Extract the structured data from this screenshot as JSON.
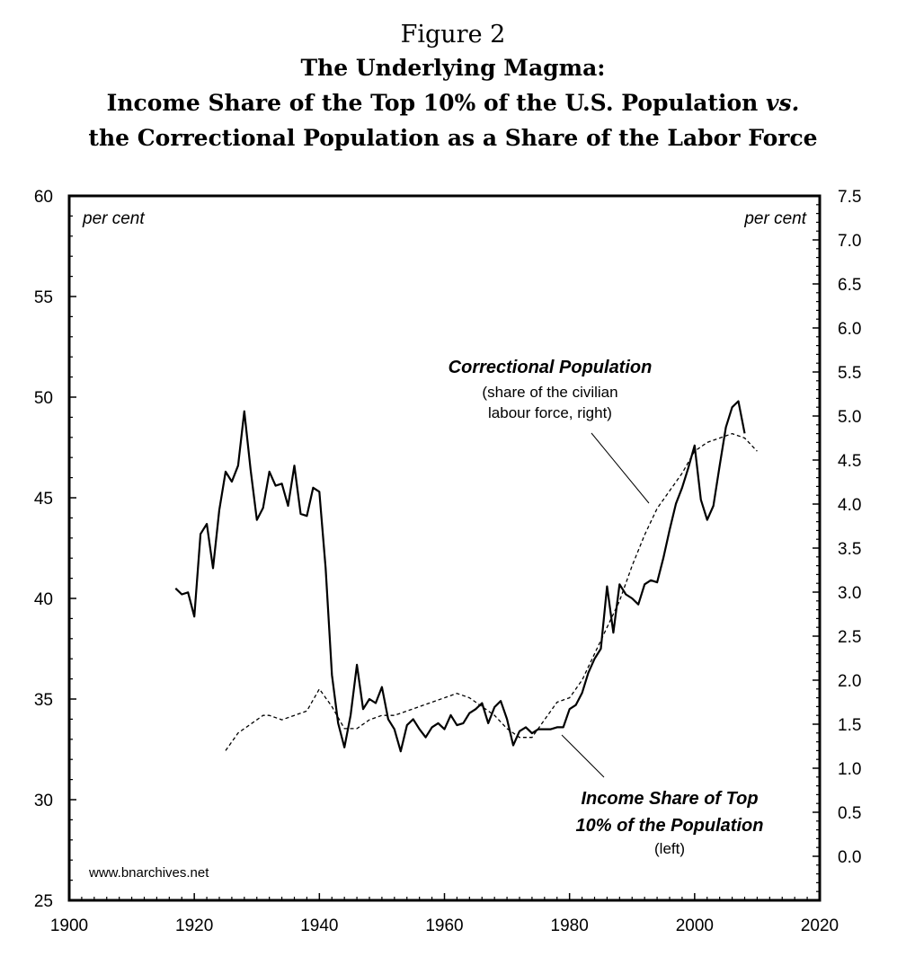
{
  "figure": {
    "label": "Figure 2",
    "title_line1": "The Underlying Magma:",
    "title_line2_a": "Income Share of the Top 10% of the U.S. Population ",
    "title_line2_b": "vs.",
    "title_line3": "the Correctional Population as a Share of the Labor Force"
  },
  "chart_data": {
    "type": "line",
    "x_axis": {
      "range": [
        1900,
        2020
      ],
      "ticks": [
        1900,
        1920,
        1940,
        1960,
        1980,
        2000,
        2020
      ]
    },
    "y_left": {
      "range": [
        25,
        60
      ],
      "ticks": [
        25,
        30,
        35,
        40,
        45,
        50,
        55,
        60
      ],
      "unit_label": "per cent"
    },
    "y_right": {
      "range": [
        -0.5,
        7.5
      ],
      "ticks": [
        "0.0",
        "0.5",
        "1.0",
        "1.5",
        "2.0",
        "2.5",
        "3.0",
        "3.5",
        "4.0",
        "4.5",
        "5.0",
        "5.5",
        "6.0",
        "6.5",
        "7.0",
        "7.5"
      ],
      "unit_label": "per cent"
    },
    "series": [
      {
        "name": "Income Share of Top 10% of the Population",
        "axis": "left",
        "style": "solid",
        "color": "#000000",
        "x": [
          1917,
          1918,
          1919,
          1920,
          1921,
          1922,
          1923,
          1924,
          1925,
          1926,
          1927,
          1928,
          1929,
          1930,
          1931,
          1932,
          1933,
          1934,
          1935,
          1936,
          1937,
          1938,
          1939,
          1940,
          1941,
          1942,
          1943,
          1944,
          1945,
          1946,
          1947,
          1948,
          1949,
          1950,
          1951,
          1952,
          1953,
          1954,
          1955,
          1956,
          1957,
          1958,
          1959,
          1960,
          1961,
          1962,
          1963,
          1964,
          1965,
          1966,
          1967,
          1968,
          1969,
          1970,
          1971,
          1972,
          1973,
          1974,
          1975,
          1976,
          1977,
          1978,
          1979,
          1980,
          1981,
          1982,
          1983,
          1984,
          1985,
          1986,
          1987,
          1988,
          1989,
          1990,
          1991,
          1992,
          1993,
          1994,
          1995,
          1996,
          1997,
          1998,
          1999,
          2000,
          2001,
          2002,
          2003,
          2004,
          2005,
          2006,
          2007,
          2008
        ],
        "y": [
          40.5,
          40.2,
          40.3,
          39.1,
          43.2,
          43.7,
          41.5,
          44.4,
          46.3,
          45.8,
          46.6,
          49.3,
          46.4,
          43.9,
          44.5,
          46.3,
          45.6,
          45.7,
          44.6,
          46.6,
          44.2,
          44.1,
          45.5,
          45.3,
          41.5,
          36.2,
          33.8,
          32.6,
          34.2,
          36.7,
          34.5,
          35.0,
          34.8,
          35.6,
          34.0,
          33.5,
          32.4,
          33.7,
          34.0,
          33.5,
          33.1,
          33.6,
          33.8,
          33.5,
          34.2,
          33.7,
          33.8,
          34.3,
          34.5,
          34.8,
          33.8,
          34.6,
          34.9,
          34.0,
          32.7,
          33.4,
          33.6,
          33.3,
          33.5,
          33.5,
          33.5,
          33.6,
          33.6,
          34.5,
          34.7,
          35.3,
          36.3,
          37.0,
          37.5,
          40.6,
          38.3,
          40.7,
          40.2,
          40.0,
          39.7,
          40.7,
          40.9,
          40.8,
          42.0,
          43.4,
          44.7,
          45.5,
          46.5,
          47.6,
          44.9,
          43.9,
          44.6,
          46.6,
          48.5,
          49.5,
          49.8,
          48.2
        ]
      },
      {
        "name": "Correctional Population",
        "axis": "right",
        "style": "dashed",
        "color": "#000000",
        "x": [
          1925,
          1927,
          1929,
          1931,
          1932,
          1934,
          1936,
          1938,
          1940,
          1942,
          1944,
          1946,
          1948,
          1950,
          1952,
          1954,
          1956,
          1958,
          1960,
          1962,
          1964,
          1966,
          1968,
          1970,
          1972,
          1974,
          1976,
          1978,
          1980,
          1982,
          1984,
          1986,
          1988,
          1990,
          1992,
          1994,
          1996,
          1998,
          2000,
          2002,
          2004,
          2006,
          2008,
          2010
        ],
        "y": [
          1.2,
          1.4,
          1.5,
          1.6,
          1.6,
          1.55,
          1.6,
          1.65,
          1.9,
          1.7,
          1.45,
          1.45,
          1.55,
          1.6,
          1.6,
          1.65,
          1.7,
          1.75,
          1.8,
          1.85,
          1.8,
          1.7,
          1.6,
          1.45,
          1.35,
          1.35,
          1.55,
          1.75,
          1.8,
          2.0,
          2.3,
          2.6,
          2.9,
          3.3,
          3.65,
          3.95,
          4.15,
          4.35,
          4.6,
          4.7,
          4.75,
          4.8,
          4.75,
          4.6
        ]
      }
    ],
    "annotations": {
      "correctional": {
        "title": "Correctional Population",
        "sub1": "(share of the civilian",
        "sub2": "labour force, right)"
      },
      "income": {
        "title1": "Income Share of Top",
        "title2": "10% of the Population",
        "sub": "(left)"
      },
      "watermark": "www.bnarchives.net"
    },
    "grid": false,
    "legend": "none (inline annotations)"
  }
}
